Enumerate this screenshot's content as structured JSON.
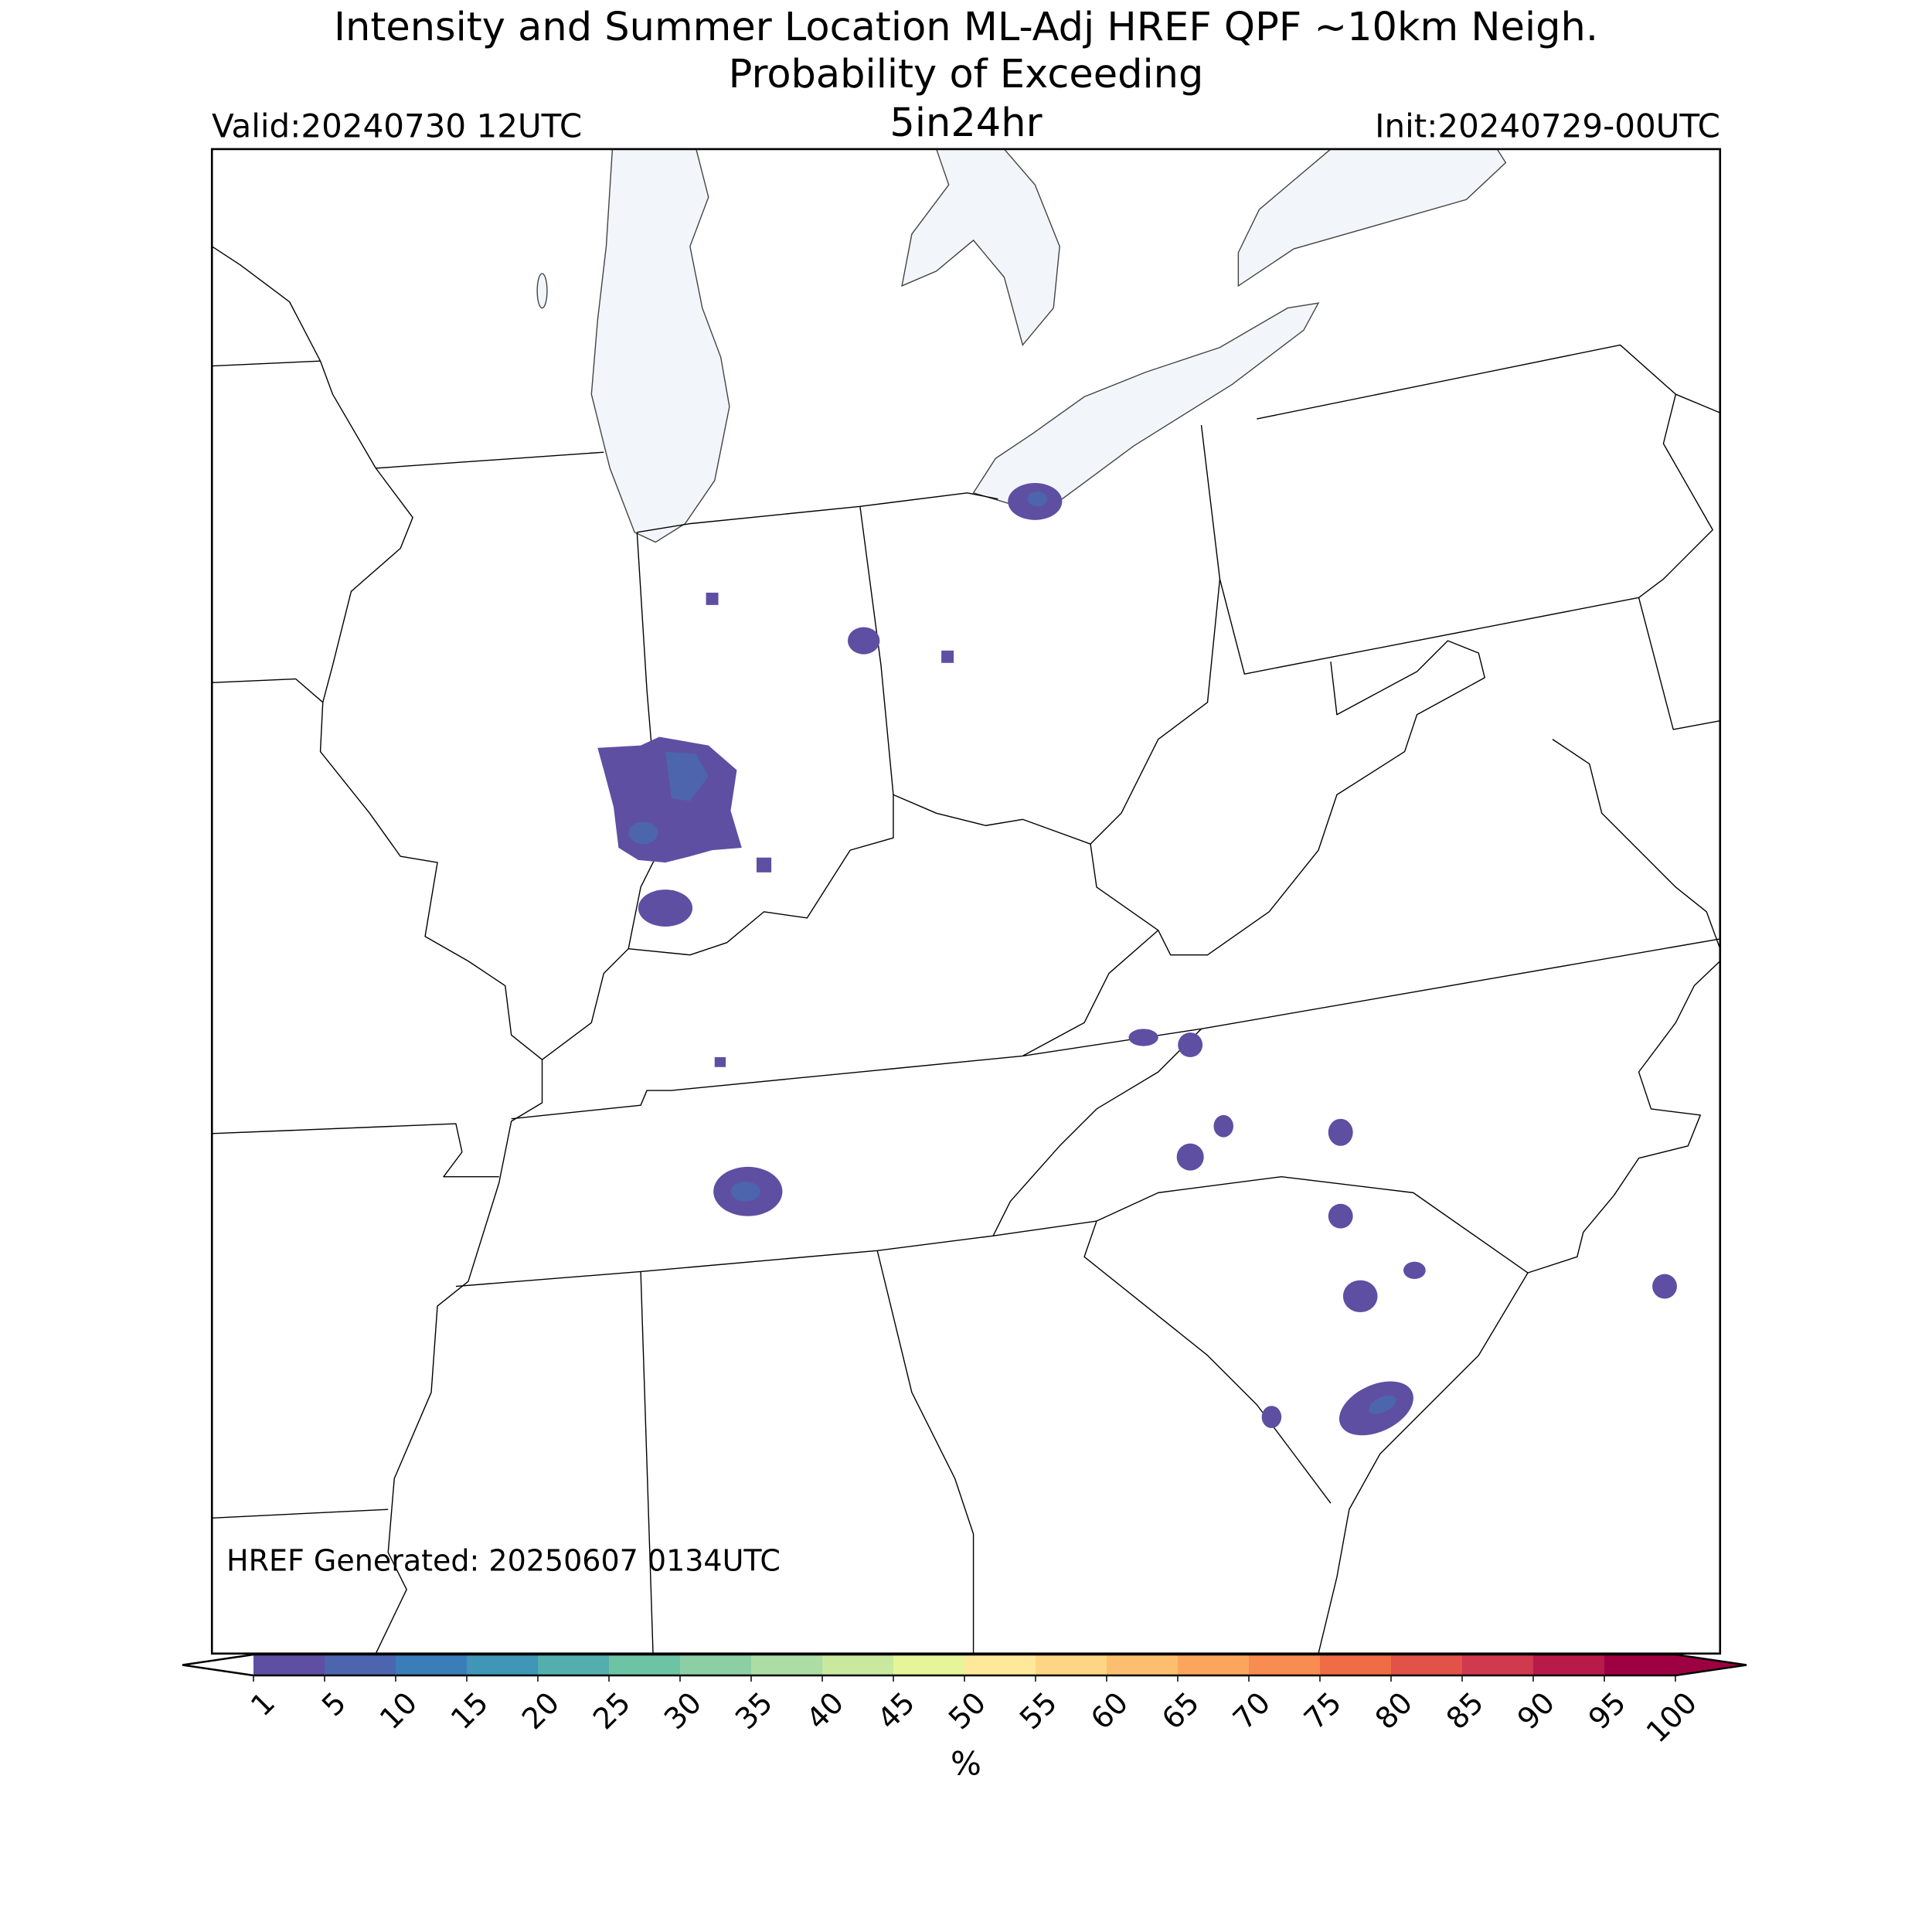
{
  "header": {
    "title_line1": "Intensity and Summer Location ML-Adj HREF QPF ~10km Neigh.",
    "title_line2": "Probability of Exceeding",
    "threshold": "5in24hr",
    "valid": "Valid:20240730 12UTC",
    "init": "Init:20240729-00UTC"
  },
  "footer_note": "HREF Generated: 20250607 0134UTC",
  "colorbar": {
    "levels": [
      1,
      5,
      10,
      15,
      20,
      25,
      30,
      35,
      40,
      45,
      50,
      55,
      60,
      65,
      70,
      75,
      80,
      85,
      90,
      95,
      100
    ],
    "colors": [
      "#5e4fa2",
      "#4d65ad",
      "#3a7eb8",
      "#3f96b7",
      "#54aead",
      "#6dc4a4",
      "#8ccfa4",
      "#abdda4",
      "#c9e99e",
      "#e6f598",
      "#fee99a",
      "#fdd685",
      "#fdbe6f",
      "#fca55d",
      "#f88c51",
      "#f06c45",
      "#e25249",
      "#d0394e",
      "#b81b4a",
      "#9e0142"
    ],
    "under_color": "#ffffff",
    "over_color": "#9e0142",
    "label": "%"
  }
}
